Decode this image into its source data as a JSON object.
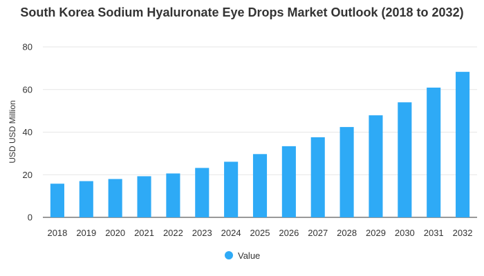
{
  "chart_data": {
    "type": "bar",
    "title": "South Korea Sodium Hyaluronate Eye Drops Market Outlook (2018 to 2032)",
    "xlabel": "",
    "ylabel": "USD USD Million",
    "categories": [
      "2018",
      "2019",
      "2020",
      "2021",
      "2022",
      "2023",
      "2024",
      "2025",
      "2026",
      "2027",
      "2028",
      "2029",
      "2030",
      "2031",
      "2032"
    ],
    "series": [
      {
        "name": "Value",
        "values": [
          15.8,
          17.0,
          18.0,
          19.3,
          20.6,
          23.2,
          26.1,
          29.7,
          33.4,
          37.6,
          42.4,
          47.9,
          54.0,
          60.9,
          68.3
        ],
        "color": "#2eaaf6"
      }
    ],
    "ylim": [
      0,
      80
    ],
    "yticks": [
      0,
      20,
      40,
      60,
      80
    ],
    "grid": true,
    "legend_position": "bottom"
  }
}
